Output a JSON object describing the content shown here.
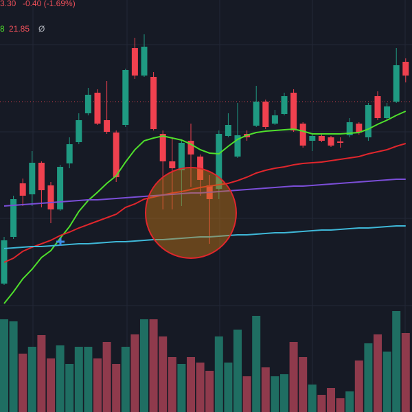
{
  "header": {
    "price": "3.30",
    "change": "-0.40 (-1.69%)",
    "ma_tail": "8",
    "ma_value": "21.85",
    "symbol": "Ø"
  },
  "chart_data": {
    "type": "candlestick",
    "ylim": [
      0,
      460
    ],
    "volume_ylim": [
      0,
      150
    ],
    "up_color": "#1f9a82",
    "down_color": "#f0414f",
    "volume_up_color": "#1f6e62",
    "volume_down_color": "#8f3a4c",
    "price_line": 312,
    "price_line_color": "#d0404a",
    "open": [
      47,
      115,
      193,
      177,
      223,
      190,
      155,
      222,
      253,
      295,
      325,
      285,
      267,
      278,
      390,
      350,
      348,
      265,
      225,
      212,
      255,
      232,
      190,
      185,
      262,
      232,
      265,
      277,
      312,
      280,
      294,
      325,
      280,
      255,
      262,
      260,
      254,
      263,
      280,
      260,
      320,
      288,
      312,
      370
    ],
    "high": [
      115,
      175,
      200,
      240,
      225,
      195,
      220,
      260,
      295,
      332,
      330,
      342,
      270,
      360,
      405,
      410,
      355,
      270,
      260,
      255,
      280,
      235,
      205,
      270,
      295,
      310,
      270,
      335,
      315,
      300,
      325,
      330,
      282,
      265,
      265,
      262,
      260,
      288,
      282,
      310,
      327,
      310,
      390,
      375
    ],
    "low": [
      45,
      112,
      160,
      160,
      158,
      135,
      153,
      215,
      250,
      292,
      278,
      265,
      195,
      275,
      345,
      348,
      270,
      155,
      155,
      160,
      188,
      175,
      105,
      170,
      260,
      230,
      255,
      275,
      272,
      278,
      292,
      268,
      245,
      240,
      253,
      246,
      245,
      260,
      264,
      255,
      285,
      285,
      310,
      340
    ],
    "close": [
      110,
      170,
      175,
      223,
      183,
      155,
      217,
      250,
      285,
      322,
      280,
      268,
      202,
      358,
      350,
      392,
      272,
      225,
      215,
      252,
      235,
      198,
      170,
      265,
      278,
      263,
      260,
      312,
      275,
      292,
      320,
      270,
      248,
      262,
      255,
      248,
      252,
      282,
      267,
      307,
      288,
      305,
      365,
      350
    ],
    "volume": [
      135,
      132,
      85,
      95,
      112,
      78,
      97,
      70,
      95,
      95,
      78,
      102,
      70,
      95,
      113,
      135,
      135,
      110,
      80,
      70,
      80,
      72,
      60,
      110,
      72,
      120,
      52,
      140,
      65,
      52,
      55,
      102,
      80,
      40,
      25,
      35,
      20,
      30,
      75,
      100,
      113,
      88,
      147,
      115
    ],
    "lines": [
      {
        "color": "#4fe02c",
        "values": [
          18,
          35,
          54,
          68,
          85,
          95,
          113,
          130,
          152,
          168,
          180,
          193,
          204,
          224,
          242,
          255,
          259,
          262,
          259,
          256,
          250,
          242,
          237,
          236,
          247,
          257,
          263,
          267,
          269,
          270,
          271,
          272,
          269,
          265,
          265,
          265,
          265,
          266,
          267,
          272,
          279,
          285,
          292,
          298
        ]
      },
      {
        "color": "#e0262c",
        "values": [
          78,
          84,
          94,
          100,
          105,
          110,
          117,
          122,
          128,
          133,
          138,
          143,
          148,
          158,
          163,
          170,
          173,
          176,
          179,
          181,
          184,
          187,
          189,
          191,
          193,
          197,
          202,
          208,
          212,
          215,
          217,
          220,
          222,
          223,
          224,
          226,
          228,
          230,
          232,
          236,
          239,
          242,
          247,
          251
        ]
      },
      {
        "color": "#7b4ed8",
        "values": [
          160,
          161,
          162,
          163,
          164,
          165,
          166,
          167,
          168,
          169,
          169,
          170,
          171,
          172,
          173,
          174,
          175,
          176,
          177,
          178,
          179,
          179,
          180,
          181,
          182,
          183,
          184,
          185,
          186,
          187,
          188,
          189,
          189,
          190,
          191,
          192,
          193,
          194,
          195,
          196,
          197,
          198,
          199,
          199
        ]
      },
      {
        "color": "#3fb8d8",
        "values": [
          98,
          99,
          100,
          101,
          101,
          102,
          103,
          104,
          105,
          105,
          106,
          107,
          108,
          108,
          109,
          110,
          111,
          111,
          112,
          113,
          114,
          115,
          115,
          116,
          117,
          118,
          118,
          119,
          120,
          121,
          121,
          122,
          123,
          124,
          125,
          125,
          126,
          127,
          128,
          128,
          129,
          130,
          131,
          131
        ]
      }
    ]
  }
}
